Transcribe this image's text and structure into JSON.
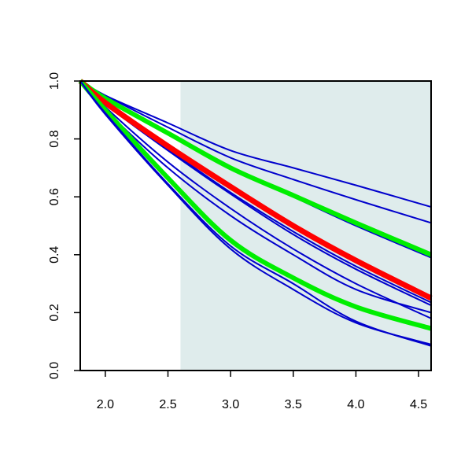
{
  "chart_data": {
    "type": "line",
    "title": "",
    "xlabel": "",
    "ylabel": "",
    "xlim": [
      1.8,
      4.6
    ],
    "ylim": [
      0.0,
      1.0
    ],
    "x_ticks": [
      2.0,
      2.5,
      3.0,
      3.5,
      4.0,
      4.5
    ],
    "x_tick_labels": [
      "2.0",
      "2.5",
      "3.0",
      "3.5",
      "4.0",
      "4.5"
    ],
    "y_ticks": [
      0.0,
      0.2,
      0.4,
      0.6,
      0.8,
      1.0
    ],
    "y_tick_labels": [
      "0.0",
      "0.2",
      "0.4",
      "0.6",
      "0.8",
      "1.0"
    ],
    "grid": false,
    "shaded_region": {
      "x_from": 2.6,
      "x_to": 4.6,
      "color": "#dfecec"
    },
    "x": [
      1.8,
      2.0,
      2.5,
      3.0,
      3.5,
      4.0,
      4.6
    ],
    "series": [
      {
        "color": "#0000cc",
        "width": 2,
        "values": [
          1.0,
          0.95,
          0.855,
          0.76,
          0.7,
          0.64,
          0.565
        ]
      },
      {
        "color": "#0000cc",
        "width": 2,
        "values": [
          1.0,
          0.95,
          0.84,
          0.735,
          0.66,
          0.59,
          0.51
        ]
      },
      {
        "color": "#0000cc",
        "width": 2,
        "values": [
          1.0,
          0.94,
          0.815,
          0.7,
          0.6,
          0.5,
          0.39
        ]
      },
      {
        "color": "#00ee00",
        "width": 6,
        "values": [
          1.0,
          0.94,
          0.82,
          0.7,
          0.605,
          0.51,
          0.4
        ]
      },
      {
        "color": "#0000cc",
        "width": 2,
        "values": [
          1.0,
          0.92,
          0.76,
          0.61,
          0.47,
          0.35,
          0.225
        ]
      },
      {
        "color": "#0000cc",
        "width": 2,
        "values": [
          1.0,
          0.92,
          0.765,
          0.615,
          0.48,
          0.36,
          0.235
        ]
      },
      {
        "color": "#ff0000",
        "width": 7,
        "values": [
          1.0,
          0.925,
          0.775,
          0.635,
          0.5,
          0.38,
          0.25
        ]
      },
      {
        "color": "#0000cc",
        "width": 2,
        "values": [
          1.0,
          0.91,
          0.72,
          0.56,
          0.42,
          0.3,
          0.18
        ]
      },
      {
        "color": "#0000cc",
        "width": 2,
        "values": [
          1.0,
          0.9,
          0.7,
          0.535,
          0.4,
          0.28,
          0.2
        ]
      },
      {
        "color": "#00ee00",
        "width": 6,
        "values": [
          1.0,
          0.9,
          0.665,
          0.45,
          0.32,
          0.22,
          0.145
        ]
      },
      {
        "color": "#0000cc",
        "width": 2,
        "values": [
          1.0,
          0.89,
          0.645,
          0.43,
          0.3,
          0.17,
          0.085
        ]
      },
      {
        "color": "#0000cc",
        "width": 2,
        "values": [
          1.0,
          0.885,
          0.64,
          0.42,
          0.28,
          0.165,
          0.09
        ]
      }
    ]
  }
}
